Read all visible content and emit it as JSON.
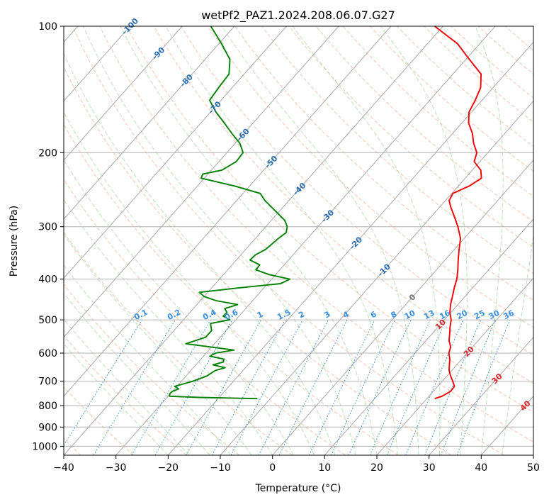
{
  "chart_data": {
    "type": "line",
    "title": "wetPf2_PAZ1.2024.208.06.07.G27",
    "xlabel": "Temperature (°C)",
    "ylabel": "Pressure (hPa)",
    "xlim": [
      -40,
      50
    ],
    "ylim": [
      1050,
      100
    ],
    "y_scale": "log",
    "grid": true,
    "x_ticks": [
      -40,
      -30,
      -20,
      -10,
      0,
      10,
      20,
      30,
      40,
      50
    ],
    "y_ticks": [
      100,
      200,
      300,
      400,
      500,
      600,
      700,
      800,
      900,
      1000
    ],
    "colors": {
      "temperature": "#ee0000",
      "dewpoint": "#008000",
      "isotherm": "#9a9a9a",
      "dry_adiabat": "#f4a582",
      "moist_adiabat": "#a6d8a0",
      "mixing_ratio": "#3a8fdc",
      "isotherm_label": "#2c6fb0",
      "hot_label": "#d62728",
      "zero_label": "#777777"
    },
    "series": [
      {
        "key": "temperature",
        "pressure": [
          770,
          760,
          740,
          720,
          700,
          680,
          660,
          640,
          620,
          600,
          580,
          560,
          540,
          520,
          500,
          480,
          460,
          440,
          420,
          400,
          380,
          360,
          340,
          320,
          300,
          285,
          270,
          260,
          250,
          240,
          230,
          220,
          210,
          200,
          190,
          180,
          170,
          160,
          150,
          140,
          130,
          120,
          110,
          100
        ],
        "temp": [
          21.5,
          22.5,
          23.3,
          23.2,
          22.0,
          20.7,
          19.5,
          18.6,
          17.7,
          16.5,
          15.8,
          14.4,
          13.4,
          12.3,
          11.3,
          9.8,
          8.6,
          7.6,
          6.5,
          5.5,
          4.1,
          2.5,
          0.9,
          -0.7,
          -3.2,
          -5.4,
          -7.8,
          -9.3,
          -9.8,
          -7.9,
          -6.9,
          -8.4,
          -11.1,
          -12.1,
          -14.3,
          -16.2,
          -18.7,
          -20.5,
          -21.3,
          -22.4,
          -24.6,
          -29.3,
          -34.3,
          -41.6
        ]
      },
      {
        "key": "dewpoint",
        "pressure": [
          770,
          765,
          760,
          750,
          740,
          730,
          720,
          700,
          680,
          660,
          650,
          640,
          630,
          620,
          610,
          600,
          590,
          570,
          550,
          530,
          510,
          500,
          490,
          480,
          470,
          460,
          450,
          440,
          430,
          420,
          410,
          400,
          390,
          380,
          370,
          360,
          350,
          340,
          330,
          320,
          310,
          300,
          290,
          280,
          270,
          260,
          250,
          240,
          230,
          225,
          220,
          210,
          200,
          190,
          180,
          170,
          160,
          150,
          140,
          130,
          120,
          110,
          100
        ],
        "dewp": [
          -12.5,
          -23.8,
          -29.7,
          -30.1,
          -30.0,
          -29.2,
          -30.4,
          -27.8,
          -26.0,
          -25.3,
          -23.9,
          -26.7,
          -25.2,
          -25.6,
          -28.8,
          -28.2,
          -25.2,
          -35.5,
          -32.8,
          -32.8,
          -34.2,
          -31.1,
          -33.0,
          -32.9,
          -34.0,
          -32.2,
          -37.0,
          -40.0,
          -41.6,
          -35.0,
          -27.5,
          -26.5,
          -31.3,
          -34.6,
          -34.7,
          -37.4,
          -37.2,
          -36.2,
          -35.9,
          -35.6,
          -35.1,
          -35.9,
          -37.4,
          -39.7,
          -42.1,
          -44.6,
          -46.7,
          -52.9,
          -60.6,
          -61.0,
          -58.0,
          -56.7,
          -56.9,
          -59.1,
          -62.3,
          -65.5,
          -69.0,
          -72.2,
          -72.6,
          -72.9,
          -75.2,
          -79.5,
          -84.5
        ]
      }
    ],
    "isotherm_labels": [
      "-100",
      "-90",
      "-80",
      "-70",
      "-60",
      "-50",
      "-40",
      "-30",
      "-20",
      "-10",
      "0",
      "10",
      "20",
      "30",
      "40"
    ],
    "isotherm_label_values": [
      -100,
      -90,
      -80,
      -70,
      -60,
      -50,
      -40,
      -30,
      -20,
      -10,
      0,
      10,
      20,
      30,
      40
    ],
    "mixing_ratio_labels": [
      "0.1",
      "0.2",
      "0.4",
      "0.6",
      "1",
      "1.5",
      "2",
      "3",
      "4",
      "6",
      "8",
      "10",
      "13",
      "16",
      "20",
      "25",
      "30",
      "36"
    ],
    "mixing_ratio_values": [
      0.1,
      0.2,
      0.4,
      0.6,
      1,
      1.5,
      2,
      3,
      4,
      6,
      8,
      10,
      13,
      16,
      20,
      25,
      30,
      36
    ]
  }
}
